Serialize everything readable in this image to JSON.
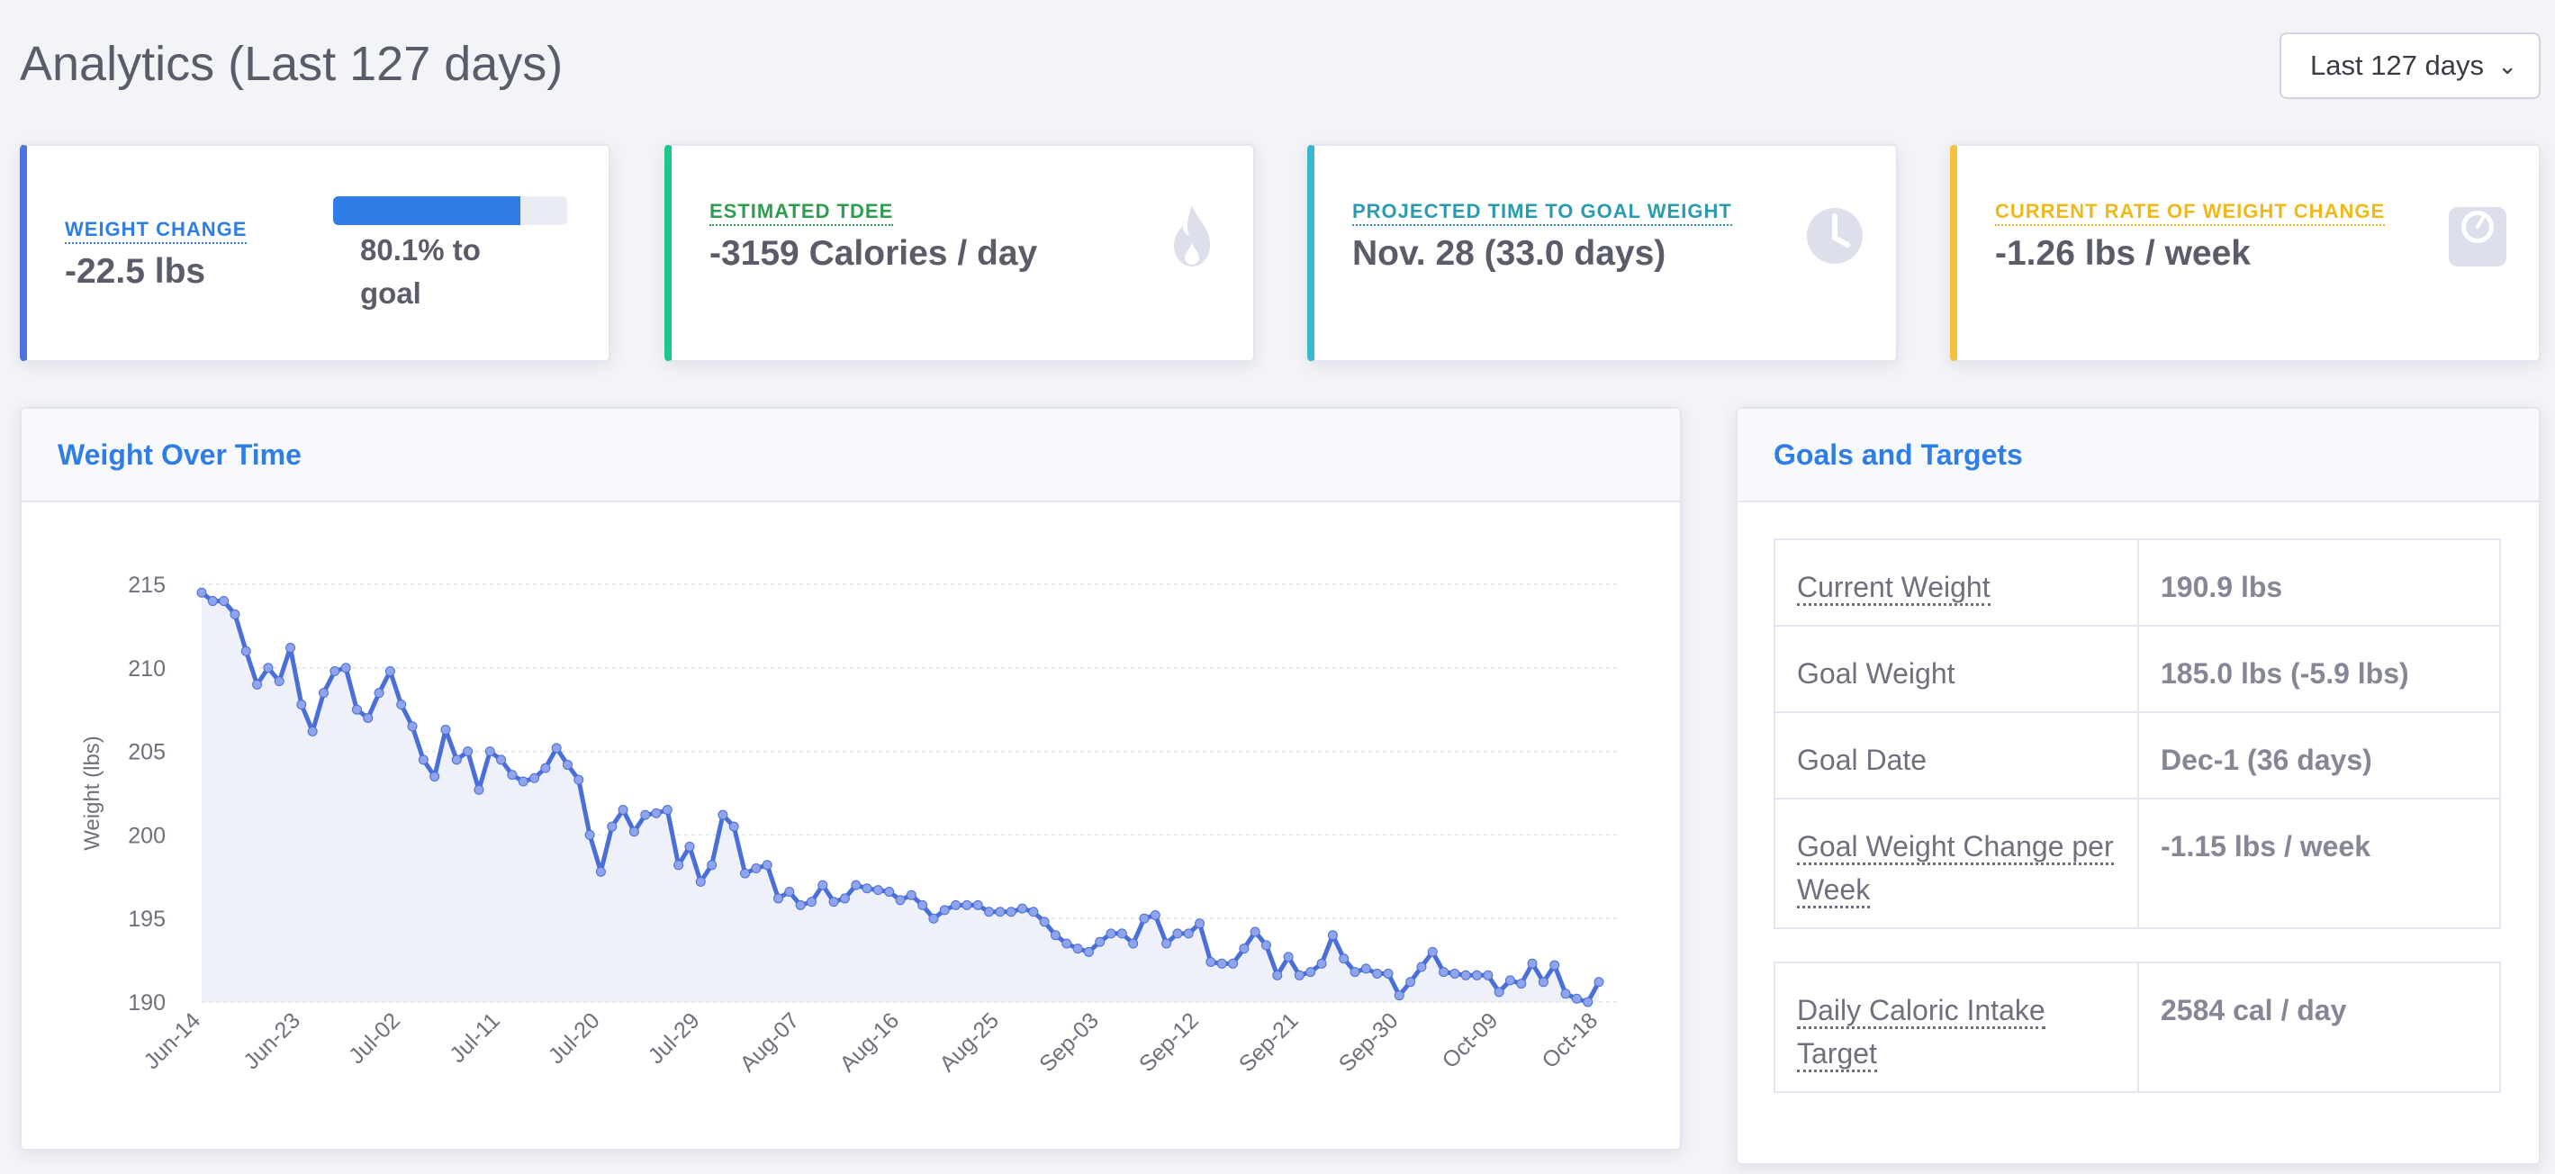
{
  "page": {
    "title": "Analytics (Last 127 days)"
  },
  "range_select": {
    "value": "Last 127 days"
  },
  "stats": {
    "weight_change": {
      "label": "Weight Change",
      "value": "-22.5 lbs",
      "progress_fraction": 0.801,
      "progress_text": "80.1% to goal",
      "color": "#2f7de6",
      "border": "#4e73df"
    },
    "tdee": {
      "label": "Estimated TDEE",
      "value": "-3159 Calories / day",
      "color": "#1cc88a",
      "text_color": "#2e9d4f",
      "icon": "fire-icon"
    },
    "projected": {
      "label": "Projected Time to Goal Weight",
      "value": "Nov. 28 (33.0 days)",
      "color": "#36b9cc",
      "text_color": "#2a9bb0",
      "icon": "clock-icon"
    },
    "rate": {
      "label": "Current Rate of Weight Change",
      "value": "-1.26 lbs / week",
      "color": "#f6c23e",
      "text_color": "#f0b91a",
      "icon": "scale-icon"
    }
  },
  "weight_panel": {
    "title": "Weight Over Time"
  },
  "goals_panel": {
    "title": "Goals and Targets",
    "rows": [
      {
        "key": "Current Weight",
        "value": "190.9 lbs"
      },
      {
        "key": "Goal Weight",
        "value": "185.0 lbs (-5.9 lbs)"
      },
      {
        "key": "Goal Date",
        "value": "Dec-1 (36 days)"
      },
      {
        "key": "Goal Weight Change per Week",
        "value": "-1.15 lbs / week"
      }
    ],
    "extra_row": {
      "key": "Daily Caloric Intake Target",
      "value": "2584 cal / day"
    }
  },
  "chart_data": {
    "type": "line",
    "ylabel": "Weight (lbs)",
    "xlabel": "",
    "ylim": [
      190,
      215
    ],
    "yticks": [
      215,
      210,
      205,
      200,
      195,
      190
    ],
    "xticks": [
      "Jun-14",
      "Jun-23",
      "Jul-02",
      "Jul-11",
      "Jul-20",
      "Jul-29",
      "Aug-07",
      "Aug-16",
      "Aug-25",
      "Sep-03",
      "Sep-12",
      "Sep-21",
      "Sep-30",
      "Oct-09",
      "Oct-18"
    ],
    "x_start": "Jun-14",
    "x_end": "Oct-18",
    "grid": true,
    "line_color": "#4a6fd8",
    "fill_color": "#eef0fa",
    "series": [
      {
        "values": [
          214.5,
          214,
          214,
          213.2,
          211,
          209,
          210,
          209.2,
          211.2,
          207.8,
          206.2,
          208.5,
          209.8,
          210,
          207.5,
          207,
          208.5,
          209.8,
          207.8,
          206.5,
          204.5,
          203.5,
          206.3,
          204.5,
          205,
          202.7,
          205,
          204.5,
          203.6,
          203.2,
          203.4,
          204,
          205.2,
          204.2,
          203.3,
          200,
          197.8,
          200.5,
          201.5,
          200.2,
          201.2,
          201.3,
          201.5,
          198.2,
          199.3,
          197.2,
          198.2,
          201.2,
          200.5,
          197.7,
          198,
          198.2,
          196.2,
          196.6,
          195.8,
          196,
          197,
          196,
          196.2,
          197,
          196.8,
          196.7,
          196.6,
          196.1,
          196.4,
          195.8,
          195,
          195.5,
          195.8,
          195.8,
          195.8,
          195.4,
          195.4,
          195.4,
          195.6,
          195.4,
          194.8,
          194,
          193.5,
          193.2,
          193,
          193.6,
          194.1,
          194.1,
          193.5,
          195,
          195.2,
          193.5,
          194.1,
          194.1,
          194.7,
          192.4,
          192.3,
          192.3,
          193.2,
          194.2,
          193.4,
          191.6,
          192.7,
          191.6,
          191.8,
          192.3,
          194,
          192.6,
          191.8,
          192,
          191.7,
          191.7,
          190.4,
          191.2,
          192.1,
          193,
          191.8,
          191.7,
          191.6,
          191.6,
          191.6,
          190.6,
          191.3,
          191.1,
          192.3,
          191.2,
          192.2,
          190.5,
          190.2,
          190,
          191.2
        ]
      }
    ]
  }
}
